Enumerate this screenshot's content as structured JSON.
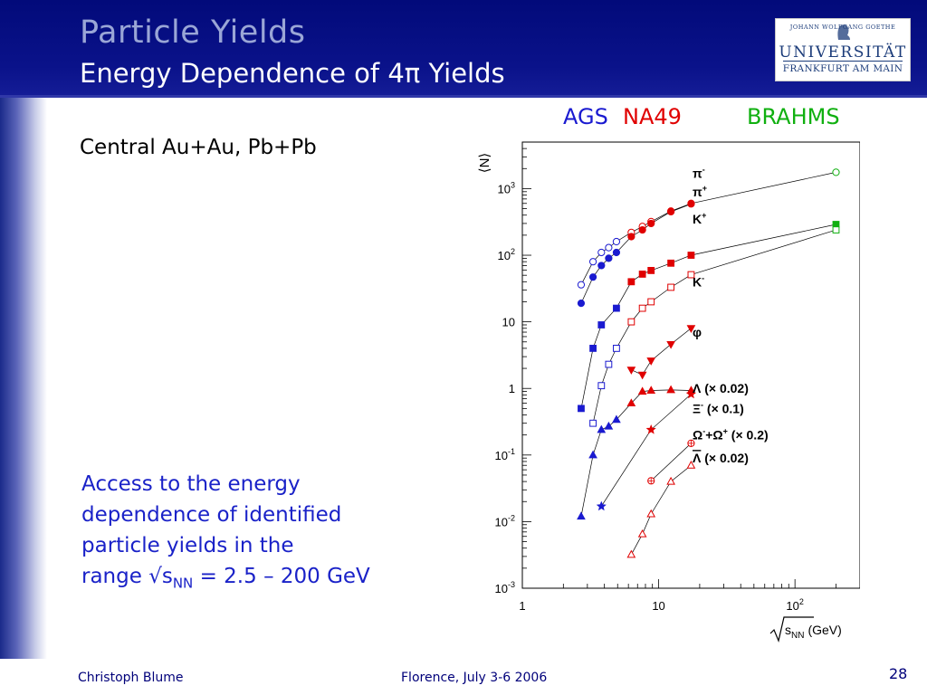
{
  "slide": {
    "title": "Particle Yields",
    "subtitle": "Energy Dependence of 4π Yields",
    "left_label": "Central Au+Au, Pb+Pb",
    "access_line1": "Access to the energy",
    "access_line2": "dependence of identified",
    "access_line3": "particle yields in the",
    "access_prefix": "range √s",
    "access_sub": "NN",
    "access_suffix": " = 2.5 – 200 GeV",
    "experiments": [
      {
        "label": "AGS",
        "color": "#1a1ad0"
      },
      {
        "label": "NA49",
        "color": "#e00000"
      },
      {
        "label": "BRAHMS",
        "color": "#10b010"
      }
    ],
    "logo": {
      "small": "JOHANN WOLFGANG GOETHE",
      "main": "UNIVERSITÄT",
      "city": "FRANKFURT AM MAIN",
      "head_icon": "goethe-portrait-icon"
    },
    "footer": {
      "author": "Christoph Blume",
      "event": "Florence, July 3-6 2006",
      "page": "28"
    }
  },
  "chart_data": {
    "type": "scatter",
    "xscale": "log",
    "yscale": "log",
    "xlim": [
      1,
      300
    ],
    "ylim": [
      0.001,
      5000
    ],
    "xlabel_base": "s",
    "xlabel_sub": "NN",
    "xlabel_unit": "(GeV)",
    "ylabel": "⟨N⟩",
    "x_ticks": [
      {
        "value": 1,
        "label": "1",
        "exp": ""
      },
      {
        "value": 10,
        "label": "10",
        "exp": ""
      },
      {
        "value": 100,
        "label": "10",
        "exp": "2"
      }
    ],
    "y_ticks": [
      {
        "value": 1000,
        "label": "10",
        "exp": "3"
      },
      {
        "value": 100,
        "label": "10",
        "exp": "2"
      },
      {
        "value": 10,
        "label": "10",
        "exp": ""
      },
      {
        "value": 1,
        "label": "1",
        "exp": ""
      },
      {
        "value": 0.1,
        "label": "10",
        "exp": "-1"
      },
      {
        "value": 0.01,
        "label": "10",
        "exp": "-2"
      },
      {
        "value": 0.001,
        "label": "10",
        "exp": "-3"
      }
    ],
    "grid": false,
    "series": [
      {
        "name": "π⁻",
        "marker": "circle",
        "filled": false,
        "label": {
          "base": "π",
          "sup": "-",
          "x": 195,
          "y": 1700
        },
        "x": [
          2.7,
          3.3,
          3.8,
          4.3,
          4.9,
          6.3,
          7.6,
          8.8,
          12.3,
          17.3,
          200
        ],
        "y": [
          36,
          80,
          110,
          130,
          160,
          220,
          270,
          320,
          460,
          600,
          1760
        ],
        "color": [
          "#1a1ad0",
          "#1a1ad0",
          "#1a1ad0",
          "#1a1ad0",
          "#1a1ad0",
          "#e00000",
          "#e00000",
          "#e00000",
          "#e00000",
          "#e00000",
          "#10b010"
        ]
      },
      {
        "name": "π⁺",
        "marker": "circle",
        "filled": true,
        "label": {
          "base": "π",
          "sup": "+",
          "x": 195,
          "y": 900
        },
        "x": [
          2.7,
          3.3,
          3.8,
          4.3,
          4.9,
          6.3,
          7.6,
          8.8,
          12.3,
          17.3
        ],
        "y": [
          19,
          47,
          70,
          90,
          110,
          190,
          240,
          300,
          450,
          590
        ],
        "color": [
          "#1a1ad0",
          "#1a1ad0",
          "#1a1ad0",
          "#1a1ad0",
          "#1a1ad0",
          "#e00000",
          "#e00000",
          "#e00000",
          "#e00000",
          "#e00000"
        ]
      },
      {
        "name": "K⁺",
        "marker": "square",
        "filled": true,
        "label": {
          "base": "K",
          "sup": "+",
          "x": 195,
          "y": 350
        },
        "x": [
          2.7,
          3.3,
          3.8,
          4.9,
          6.3,
          7.6,
          8.8,
          12.3,
          17.3,
          200
        ],
        "y": [
          0.5,
          4,
          9,
          16,
          40,
          52,
          59,
          76,
          100,
          290
        ],
        "color": [
          "#1a1ad0",
          "#1a1ad0",
          "#1a1ad0",
          "#1a1ad0",
          "#e00000",
          "#e00000",
          "#e00000",
          "#e00000",
          "#e00000",
          "#10b010"
        ]
      },
      {
        "name": "K⁻",
        "marker": "square",
        "filled": false,
        "label": {
          "base": "K",
          "sup": "-",
          "x": 195,
          "y": 40
        },
        "x": [
          3.3,
          3.8,
          4.3,
          4.9,
          6.3,
          7.6,
          8.8,
          12.3,
          17.3,
          200
        ],
        "y": [
          0.3,
          1.1,
          2.3,
          4,
          10,
          16,
          20,
          33,
          51,
          240
        ],
        "color": [
          "#1a1ad0",
          "#1a1ad0",
          "#1a1ad0",
          "#1a1ad0",
          "#e00000",
          "#e00000",
          "#e00000",
          "#e00000",
          "#e00000",
          "#10b010"
        ]
      },
      {
        "name": "φ",
        "marker": "triangle-down",
        "filled": true,
        "label": {
          "base": "φ",
          "sup": "",
          "x": 195,
          "y": 7
        },
        "x": [
          6.3,
          7.6,
          8.8,
          12.3,
          17.3
        ],
        "y": [
          1.9,
          1.6,
          2.6,
          4.6,
          8
        ],
        "color": [
          "#e00000",
          "#e00000",
          "#e00000",
          "#e00000",
          "#e00000"
        ]
      },
      {
        "name": "Λ (× 0.02)",
        "marker": "triangle",
        "filled": true,
        "label": {
          "base": "Λ (×  0.02)",
          "sup": "",
          "x": 195,
          "y": 1.0
        },
        "x": [
          2.7,
          3.3,
          3.8,
          4.3,
          4.9,
          6.3,
          7.6,
          8.8,
          12.3,
          17.3
        ],
        "y": [
          0.012,
          0.1,
          0.24,
          0.27,
          0.34,
          0.6,
          0.9,
          0.93,
          0.95,
          0.93
        ],
        "color": [
          "#1a1ad0",
          "#1a1ad0",
          "#1a1ad0",
          "#1a1ad0",
          "#1a1ad0",
          "#e00000",
          "#e00000",
          "#e00000",
          "#e00000",
          "#e00000"
        ]
      },
      {
        "name": "Ξ⁻ (× 0.1)",
        "marker": "star",
        "filled": true,
        "label": {
          "base": "Ξ",
          "sup": "-",
          "rest": " (×  0.1)",
          "x": 195,
          "y": 0.5
        },
        "x": [
          3.8,
          8.8,
          17.3
        ],
        "y": [
          0.017,
          0.24,
          0.82
        ],
        "color": [
          "#1a1ad0",
          "#e00000",
          "#e00000"
        ]
      },
      {
        "name": "Ω⁻+Ω̄⁺ (× 0.2)",
        "marker": "circle-cross",
        "filled": false,
        "label": {
          "base": "Ω",
          "sup": "-",
          "rest": "+Ω",
          "sup2": "+",
          "rest2": " (×  0.2)",
          "x": 195,
          "y": 0.2
        },
        "x": [
          8.8,
          17.3
        ],
        "y": [
          0.041,
          0.15
        ],
        "color": [
          "#e00000",
          "#e00000"
        ]
      },
      {
        "name": "Λ̄ (× 0.02)",
        "marker": "triangle",
        "filled": false,
        "label": {
          "base": "Λ",
          "sup": "",
          "rest": " (×  0.02)",
          "x": 195,
          "y": 0.09,
          "overline": true
        },
        "x": [
          6.3,
          7.6,
          8.8,
          12.3,
          17.3
        ],
        "y": [
          0.0032,
          0.0065,
          0.013,
          0.04,
          0.07
        ],
        "color": [
          "#e00000",
          "#e00000",
          "#e00000",
          "#e00000",
          "#e00000"
        ]
      }
    ]
  }
}
